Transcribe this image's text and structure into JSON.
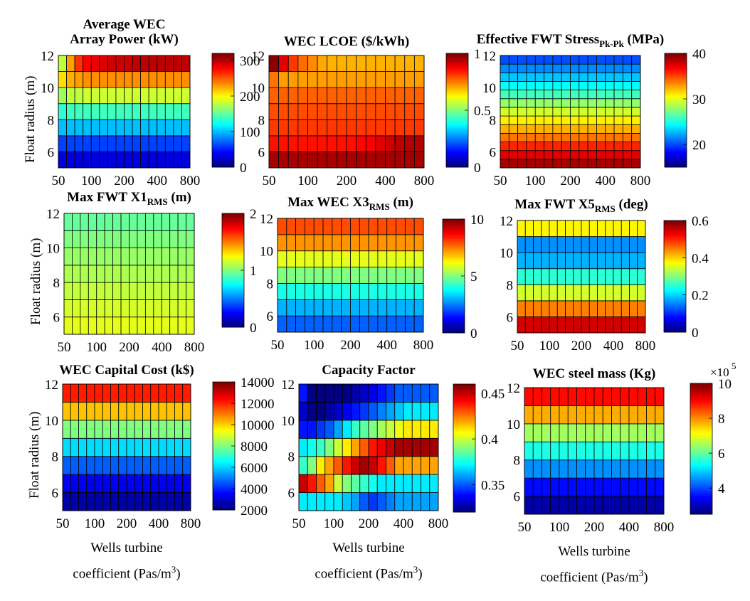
{
  "chart_data": [
    {
      "type": "heatmap",
      "title": "Average WEC Array Power (kW)",
      "title_lines": [
        "Average WEC",
        "Array Power (kW)"
      ],
      "xlabel": "",
      "ylabel": "Float radius (m)",
      "xticks": [
        "50",
        "100",
        "200",
        "400",
        "800"
      ],
      "yticks": [
        "6",
        "8",
        "10",
        "12"
      ],
      "xlim": [
        50,
        800
      ],
      "ylim": [
        5,
        12
      ],
      "colorbar_ticks": [
        "300",
        "200",
        "100",
        "0"
      ],
      "clim": [
        0,
        320
      ],
      "grid": true,
      "rows_radius": [
        6,
        7,
        8,
        9,
        10,
        11,
        12
      ],
      "values": [
        [
          30,
          30,
          30,
          30,
          30,
          30,
          30,
          30,
          30,
          30,
          30,
          30,
          30,
          30,
          30,
          30
        ],
        [
          60,
          60,
          60,
          60,
          60,
          60,
          60,
          60,
          60,
          60,
          60,
          60,
          60,
          60,
          60,
          60
        ],
        [
          100,
          100,
          100,
          100,
          100,
          100,
          100,
          100,
          100,
          100,
          100,
          100,
          100,
          100,
          100,
          100
        ],
        [
          135,
          140,
          140,
          140,
          140,
          140,
          140,
          140,
          140,
          140,
          140,
          140,
          140,
          140,
          140,
          140
        ],
        [
          170,
          180,
          180,
          185,
          185,
          185,
          185,
          185,
          185,
          185,
          185,
          185,
          185,
          185,
          185,
          185
        ],
        [
          210,
          225,
          230,
          235,
          235,
          235,
          235,
          235,
          235,
          235,
          235,
          235,
          235,
          235,
          235,
          235
        ],
        [
          180,
          230,
          265,
          280,
          285,
          290,
          295,
          295,
          295,
          300,
          300,
          300,
          300,
          300,
          300,
          300
        ]
      ]
    },
    {
      "type": "heatmap",
      "title": "WEC LCOE ($/kWh)",
      "title_lines": [
        "WEC LCOE ($/kWh)"
      ],
      "xlabel": "",
      "ylabel": "",
      "xticks": [
        "50",
        "100",
        "200",
        "400",
        "800"
      ],
      "yticks": [
        "6",
        "8",
        "10",
        "12"
      ],
      "xlim": [
        50,
        800
      ],
      "ylim": [
        5,
        12
      ],
      "colorbar_ticks": [
        "1",
        "0.5",
        "0"
      ],
      "clim": [
        0,
        1
      ],
      "grid": true,
      "rows_radius": [
        6,
        7,
        8,
        9,
        10,
        11,
        12
      ],
      "values": [
        [
          0.96,
          0.96,
          0.96,
          0.96,
          0.96,
          0.96,
          0.96,
          0.96,
          0.96,
          0.96,
          0.96,
          0.96,
          0.96,
          0.96,
          0.96,
          0.96
        ],
        [
          0.86,
          0.86,
          0.86,
          0.86,
          0.86,
          0.86,
          0.86,
          0.86,
          0.86,
          0.87,
          0.88,
          0.9,
          0.92,
          0.94,
          0.95,
          0.95
        ],
        [
          0.82,
          0.82,
          0.82,
          0.82,
          0.82,
          0.82,
          0.82,
          0.82,
          0.82,
          0.82,
          0.82,
          0.82,
          0.82,
          0.82,
          0.82,
          0.82
        ],
        [
          0.8,
          0.8,
          0.8,
          0.8,
          0.8,
          0.8,
          0.8,
          0.8,
          0.8,
          0.8,
          0.8,
          0.8,
          0.8,
          0.8,
          0.8,
          0.8
        ],
        [
          0.78,
          0.78,
          0.78,
          0.78,
          0.78,
          0.78,
          0.78,
          0.78,
          0.78,
          0.78,
          0.78,
          0.78,
          0.78,
          0.78,
          0.78,
          0.78
        ],
        [
          0.76,
          0.72,
          0.72,
          0.72,
          0.72,
          0.72,
          0.72,
          0.72,
          0.72,
          0.72,
          0.72,
          0.72,
          0.72,
          0.72,
          0.72,
          0.72
        ],
        [
          0.99,
          0.9,
          0.82,
          0.77,
          0.74,
          0.71,
          0.7,
          0.7,
          0.7,
          0.7,
          0.7,
          0.7,
          0.7,
          0.7,
          0.7,
          0.7
        ]
      ]
    },
    {
      "type": "heatmap",
      "title": "Effective FWT Stress Pk-Pk (MPa)",
      "title_main": "Effective FWT Stress",
      "title_sub": "Pk-Pk",
      "title_tail": " (MPa)",
      "xlabel": "",
      "ylabel": "",
      "xticks": [
        "50",
        "100",
        "200",
        "400",
        "800"
      ],
      "yticks": [
        "6",
        "8",
        "10",
        "12"
      ],
      "xlim": [
        50,
        800
      ],
      "ylim": [
        5,
        12
      ],
      "colorbar_ticks": [
        "40",
        "30",
        "20"
      ],
      "clim": [
        15,
        40
      ],
      "grid": true,
      "rows_radius": [
        6,
        6.5,
        7,
        7.5,
        8,
        8.5,
        9,
        9.5,
        10,
        10.5,
        11,
        11.5,
        12
      ],
      "row_values": [
        39,
        37.5,
        36,
        34,
        32.5,
        31,
        29.5,
        28,
        26,
        24.5,
        23,
        21.5,
        20
      ]
    },
    {
      "type": "heatmap",
      "title": "Max FWT X1 RMS (m)",
      "title_main": "Max FWT X1",
      "title_sub": "RMS",
      "title_tail": " (m)",
      "xlabel": "",
      "ylabel": "Float radius (m)",
      "xticks": [
        "50",
        "100",
        "200",
        "400",
        "800"
      ],
      "yticks": [
        "6",
        "8",
        "10",
        "12"
      ],
      "xlim": [
        50,
        800
      ],
      "ylim": [
        5,
        12
      ],
      "colorbar_ticks": [
        "2",
        "1",
        "0"
      ],
      "clim": [
        0,
        2
      ],
      "grid": true,
      "rows_radius": [
        6,
        7,
        8,
        9,
        10,
        11,
        12
      ],
      "row_values": [
        1.2,
        1.17,
        1.13,
        1.09,
        1.05,
        1.0,
        0.95
      ]
    },
    {
      "type": "heatmap",
      "title": "Max WEC X3 RMS (m)",
      "title_main": "Max WEC X3",
      "title_sub": "RMS",
      "title_tail": " (m)",
      "xlabel": "",
      "ylabel": "",
      "xticks": [
        "50",
        "100",
        "200",
        "400",
        "800"
      ],
      "yticks": [
        "6",
        "8",
        "10",
        "12"
      ],
      "xlim": [
        50,
        800
      ],
      "ylim": [
        5,
        12
      ],
      "colorbar_ticks": [
        "10",
        "5",
        "0"
      ],
      "clim": [
        0,
        10
      ],
      "grid": true,
      "rows_radius": [
        6,
        7,
        8,
        9,
        10,
        11,
        12
      ],
      "row_values": [
        2.2,
        3.0,
        4.0,
        5.0,
        6.0,
        7.3,
        8.0
      ]
    },
    {
      "type": "heatmap",
      "title": "Max FWT X5 RMS (deg)",
      "title_main": "Max FWT X5",
      "title_sub": "RMS",
      "title_tail": " (deg)",
      "xlabel": "",
      "ylabel": "",
      "xticks": [
        "50",
        "100",
        "200",
        "400",
        "800"
      ],
      "yticks": [
        "6",
        "8",
        "10",
        "12"
      ],
      "xlim": [
        50,
        800
      ],
      "ylim": [
        5,
        12
      ],
      "colorbar_ticks": [
        "0.6",
        "0.4",
        "0.2",
        "0"
      ],
      "clim": [
        0,
        0.6
      ],
      "grid": true,
      "rows_radius": [
        6,
        7,
        8,
        9,
        10,
        11,
        12
      ],
      "row_values": [
        0.55,
        0.45,
        0.35,
        0.25,
        0.18,
        0.16,
        0.38
      ]
    },
    {
      "type": "heatmap",
      "title": "WEC Capital Cost (k$)",
      "title_lines": [
        "WEC Capital Cost (k$)"
      ],
      "xlabel": "Wells turbine coefficient (Pas/m3)",
      "ylabel": "Float radius (m)",
      "xticks": [
        "50",
        "100",
        "200",
        "400",
        "800"
      ],
      "yticks": [
        "6",
        "8",
        "10",
        "12"
      ],
      "xlim": [
        50,
        800
      ],
      "ylim": [
        5,
        12
      ],
      "colorbar_ticks": [
        "14000",
        "12000",
        "10000",
        "8000",
        "6000",
        "4000",
        "2000"
      ],
      "clim": [
        2000,
        14000
      ],
      "grid": true,
      "rows_radius": [
        6,
        7,
        8,
        9,
        10,
        11,
        12
      ],
      "row_values": [
        2500,
        3300,
        4600,
        6100,
        8000,
        10200,
        12200
      ]
    },
    {
      "type": "heatmap",
      "title": "Capacity Factor",
      "title_lines": [
        "Capacity Factor"
      ],
      "xlabel": "Wells turbine coefficient (Pas/m3)",
      "ylabel": "",
      "xticks": [
        "50",
        "100",
        "200",
        "400",
        "800"
      ],
      "yticks": [
        "6",
        "8",
        "10",
        "12"
      ],
      "xlim": [
        50,
        800
      ],
      "ylim": [
        5,
        12
      ],
      "colorbar_ticks": [
        "0.45",
        "0.4",
        "0.35"
      ],
      "clim": [
        0.32,
        0.46
      ],
      "grid": true,
      "rows_radius": [
        6,
        7,
        8,
        9,
        10,
        11,
        12
      ],
      "values": [
        [
          0.37,
          0.37,
          0.37,
          0.37,
          0.37,
          0.365,
          0.36,
          0.35,
          0.345,
          0.35,
          0.355,
          0.36,
          0.36,
          0.36,
          0.36,
          0.36
        ],
        [
          0.45,
          0.44,
          0.43,
          0.42,
          0.4,
          0.39,
          0.385,
          0.38,
          0.375,
          0.37,
          0.37,
          0.37,
          0.37,
          0.37,
          0.37,
          0.37
        ],
        [
          0.38,
          0.39,
          0.41,
          0.42,
          0.43,
          0.44,
          0.45,
          0.455,
          0.45,
          0.44,
          0.43,
          0.42,
          0.42,
          0.42,
          0.42,
          0.42
        ],
        [
          0.37,
          0.375,
          0.38,
          0.39,
          0.4,
          0.41,
          0.42,
          0.43,
          0.44,
          0.445,
          0.45,
          0.455,
          0.455,
          0.455,
          0.455,
          0.455
        ],
        [
          0.34,
          0.34,
          0.345,
          0.35,
          0.36,
          0.37,
          0.38,
          0.385,
          0.39,
          0.395,
          0.4,
          0.405,
          0.41,
          0.41,
          0.41,
          0.41
        ],
        [
          0.33,
          0.32,
          0.32,
          0.325,
          0.33,
          0.335,
          0.34,
          0.345,
          0.35,
          0.355,
          0.36,
          0.365,
          0.37,
          0.37,
          0.37,
          0.37
        ],
        [
          0.34,
          0.32,
          0.32,
          0.32,
          0.32,
          0.32,
          0.325,
          0.33,
          0.335,
          0.34,
          0.345,
          0.35,
          0.35,
          0.35,
          0.35,
          0.35
        ]
      ]
    },
    {
      "type": "heatmap",
      "title": "WEC steel mass (Kg)",
      "title_lines": [
        "WEC steel mass (Kg)"
      ],
      "xlabel": "Wells turbine coefficient (Pas/m3)",
      "ylabel": "",
      "xticks": [
        "50",
        "100",
        "200",
        "400",
        "800"
      ],
      "yticks": [
        "6",
        "8",
        "10",
        "12"
      ],
      "xlim": [
        50,
        800
      ],
      "ylim": [
        5,
        12
      ],
      "colorbar_ticks": [
        "10",
        "8",
        "6",
        "4"
      ],
      "colorbar_exponent": "×10",
      "colorbar_exponent_power": "5",
      "clim": [
        2.5,
        10
      ],
      "grid": true,
      "rows_radius": [
        6,
        7,
        8,
        9,
        10,
        11,
        12
      ],
      "row_values": [
        2.8,
        3.5,
        4.5,
        5.5,
        6.5,
        7.8,
        9.0
      ]
    }
  ]
}
